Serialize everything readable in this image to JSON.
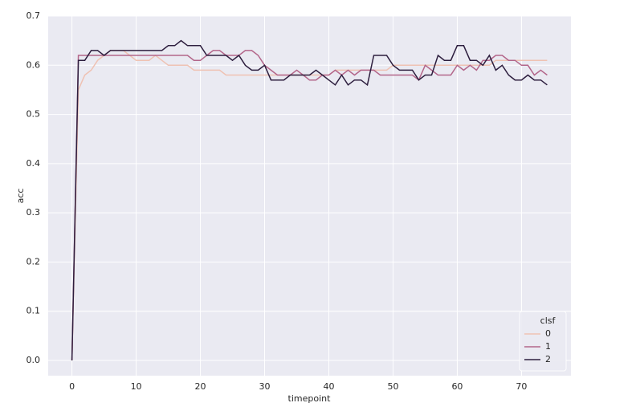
{
  "chart_data": {
    "type": "line",
    "x_label": "timepoint",
    "y_label": "acc",
    "x": [
      0,
      1,
      2,
      3,
      4,
      5,
      6,
      7,
      8,
      9,
      10,
      11,
      12,
      13,
      14,
      15,
      16,
      17,
      18,
      19,
      20,
      21,
      22,
      23,
      24,
      25,
      26,
      27,
      28,
      29,
      30,
      31,
      32,
      33,
      34,
      35,
      36,
      37,
      38,
      39,
      40,
      41,
      42,
      43,
      44,
      45,
      46,
      47,
      48,
      49,
      50,
      51,
      52,
      53,
      54,
      55,
      56,
      57,
      58,
      59,
      60,
      61,
      62,
      63,
      64,
      65,
      66,
      67,
      68,
      69,
      70,
      71,
      72,
      73,
      74
    ],
    "series": [
      {
        "name": "0",
        "color": "#efc2b3",
        "values": [
          0,
          0.55,
          0.58,
          0.59,
          0.61,
          0.62,
          0.63,
          0.63,
          0.63,
          0.62,
          0.61,
          0.61,
          0.61,
          0.62,
          0.61,
          0.6,
          0.6,
          0.6,
          0.6,
          0.59,
          0.59,
          0.59,
          0.59,
          0.59,
          0.58,
          0.58,
          0.58,
          0.58,
          0.58,
          0.58,
          0.58,
          0.58,
          0.58,
          0.58,
          0.58,
          0.58,
          0.58,
          0.58,
          0.58,
          0.58,
          0.58,
          0.59,
          0.59,
          0.59,
          0.59,
          0.59,
          0.59,
          0.59,
          0.59,
          0.59,
          0.6,
          0.6,
          0.6,
          0.6,
          0.6,
          0.6,
          0.6,
          0.6,
          0.6,
          0.6,
          0.6,
          0.6,
          0.6,
          0.6,
          0.6,
          0.6,
          0.61,
          0.61,
          0.61,
          0.61,
          0.61,
          0.61,
          0.61,
          0.61,
          0.61
        ]
      },
      {
        "name": "1",
        "color": "#b3668a",
        "values": [
          0,
          0.62,
          0.62,
          0.62,
          0.62,
          0.62,
          0.62,
          0.62,
          0.62,
          0.62,
          0.62,
          0.62,
          0.62,
          0.62,
          0.62,
          0.62,
          0.62,
          0.62,
          0.62,
          0.61,
          0.61,
          0.62,
          0.63,
          0.63,
          0.62,
          0.62,
          0.62,
          0.63,
          0.63,
          0.62,
          0.6,
          0.59,
          0.58,
          0.58,
          0.58,
          0.59,
          0.58,
          0.57,
          0.57,
          0.58,
          0.58,
          0.59,
          0.58,
          0.59,
          0.58,
          0.59,
          0.59,
          0.59,
          0.58,
          0.58,
          0.58,
          0.58,
          0.58,
          0.58,
          0.57,
          0.6,
          0.59,
          0.58,
          0.58,
          0.58,
          0.6,
          0.59,
          0.6,
          0.59,
          0.61,
          0.61,
          0.62,
          0.62,
          0.61,
          0.61,
          0.6,
          0.6,
          0.58,
          0.59,
          0.58
        ]
      },
      {
        "name": "2",
        "color": "#2d1e3e",
        "values": [
          0,
          0.61,
          0.61,
          0.63,
          0.63,
          0.62,
          0.63,
          0.63,
          0.63,
          0.63,
          0.63,
          0.63,
          0.63,
          0.63,
          0.63,
          0.64,
          0.64,
          0.65,
          0.64,
          0.64,
          0.64,
          0.62,
          0.62,
          0.62,
          0.62,
          0.61,
          0.62,
          0.6,
          0.59,
          0.59,
          0.6,
          0.57,
          0.57,
          0.57,
          0.58,
          0.58,
          0.58,
          0.58,
          0.59,
          0.58,
          0.57,
          0.56,
          0.58,
          0.56,
          0.57,
          0.57,
          0.56,
          0.62,
          0.62,
          0.62,
          0.6,
          0.59,
          0.59,
          0.59,
          0.57,
          0.58,
          0.58,
          0.62,
          0.61,
          0.61,
          0.64,
          0.64,
          0.61,
          0.61,
          0.6,
          0.62,
          0.59,
          0.6,
          0.58,
          0.57,
          0.57,
          0.58,
          0.57,
          0.57,
          0.56
        ]
      }
    ],
    "xlim": [
      -3.7,
      77.7
    ],
    "ylim": [
      -0.031,
      0.7
    ],
    "xticks": [
      0,
      10,
      20,
      30,
      40,
      50,
      60,
      70
    ],
    "yticks": [
      {
        "value": 0,
        "label": "0.0"
      },
      {
        "value": 0.1,
        "label": "0.1"
      },
      {
        "value": 0.2,
        "label": "0.2"
      },
      {
        "value": 0.3,
        "label": "0.3"
      },
      {
        "value": 0.4,
        "label": "0.4"
      },
      {
        "value": 0.5,
        "label": "0.5"
      },
      {
        "value": 0.6,
        "label": "0.6"
      },
      {
        "value": 0.7,
        "label": "0.7"
      }
    ],
    "grid": true,
    "legend_title": "clsf",
    "legend_position": "lower right"
  }
}
